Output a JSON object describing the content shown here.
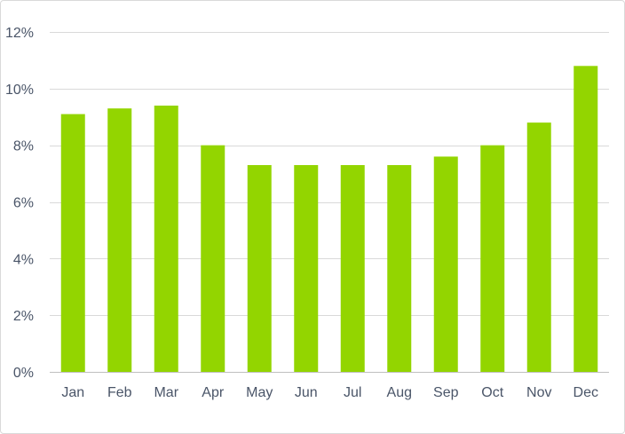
{
  "chart_data": {
    "type": "bar",
    "title": "",
    "xlabel": "",
    "ylabel": "",
    "categories": [
      "Jan",
      "Feb",
      "Mar",
      "Apr",
      "May",
      "Jun",
      "Jul",
      "Aug",
      "Sep",
      "Oct",
      "Nov",
      "Dec"
    ],
    "values": [
      9.1,
      9.3,
      9.4,
      8.0,
      7.3,
      7.3,
      7.3,
      7.3,
      7.6,
      8.0,
      8.8,
      10.8
    ],
    "ylim": [
      0,
      12
    ],
    "yticks": [
      0,
      2,
      4,
      6,
      8,
      10,
      12
    ],
    "ytick_labels": [
      "0%",
      "2%",
      "4%",
      "6%",
      "8%",
      "10%",
      "12%"
    ],
    "grid": true,
    "legend": "none",
    "bar_color": "#93d500"
  }
}
